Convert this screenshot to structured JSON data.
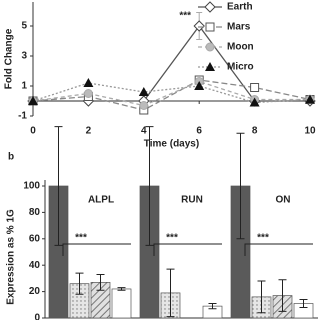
{
  "chart_data": [
    {
      "type": "line",
      "x_label": "Time (days)",
      "y_label": "Fold Change",
      "x": [
        0,
        2,
        4,
        6,
        8,
        10
      ],
      "series": [
        {
          "name": "Earth",
          "color": "#555555",
          "marker": "diamond",
          "dash": "none",
          "values": [
            0,
            0,
            0,
            5,
            0,
            0
          ],
          "errors": [
            null,
            null,
            null,
            0.9,
            null,
            null
          ]
        },
        {
          "name": "Mars",
          "color": "#888888",
          "marker": "square",
          "dash": "6,3",
          "values": [
            0,
            0.3,
            -0.6,
            1.4,
            0.9,
            0.1
          ]
        },
        {
          "name": "Moon",
          "color": "#aaaaaa",
          "marker": "circle",
          "dash": "4,3",
          "values": [
            0,
            0.5,
            -0.3,
            1.3,
            0.1,
            0.1
          ]
        },
        {
          "name": "Micro",
          "color": "#999999",
          "marker": "triangle",
          "dash": "2,2",
          "values": [
            0,
            1.2,
            0.6,
            1.0,
            -0.1,
            0.1
          ]
        }
      ],
      "annotations": [
        {
          "text": "***",
          "x": 6
        }
      ],
      "xlim": [
        0,
        10
      ],
      "xticks": [
        0,
        2,
        4,
        6,
        8,
        10
      ],
      "ylim": [
        -1,
        6.6
      ],
      "yticks": [
        -1,
        1,
        3,
        5
      ]
    },
    {
      "type": "bar",
      "panel_label": "b",
      "y_label": "Expression as % 1G",
      "categories": [
        "ALPL",
        "RUN",
        "ON"
      ],
      "series": [
        {
          "color": "#5a5a5a",
          "pattern": "solid",
          "values": [
            100,
            100,
            100
          ],
          "errors": [
            45,
            45,
            40
          ]
        },
        {
          "color": "#d9d9d9",
          "pattern": "dots",
          "values": [
            26,
            19,
            16
          ],
          "errors": [
            8,
            18,
            12
          ]
        },
        {
          "color": "#cccccc",
          "pattern": "hatch",
          "values": [
            27,
            null,
            17
          ],
          "errors": [
            6,
            null,
            12
          ]
        },
        {
          "color": "#ffffff",
          "pattern": "solid",
          "values": [
            22,
            9,
            11
          ],
          "errors": [
            1,
            2,
            3
          ]
        }
      ],
      "annotations": [
        "***",
        "***",
        "***"
      ],
      "ylim": [
        0,
        100
      ],
      "yticks": [
        0,
        20,
        40,
        60,
        80,
        100
      ]
    }
  ]
}
